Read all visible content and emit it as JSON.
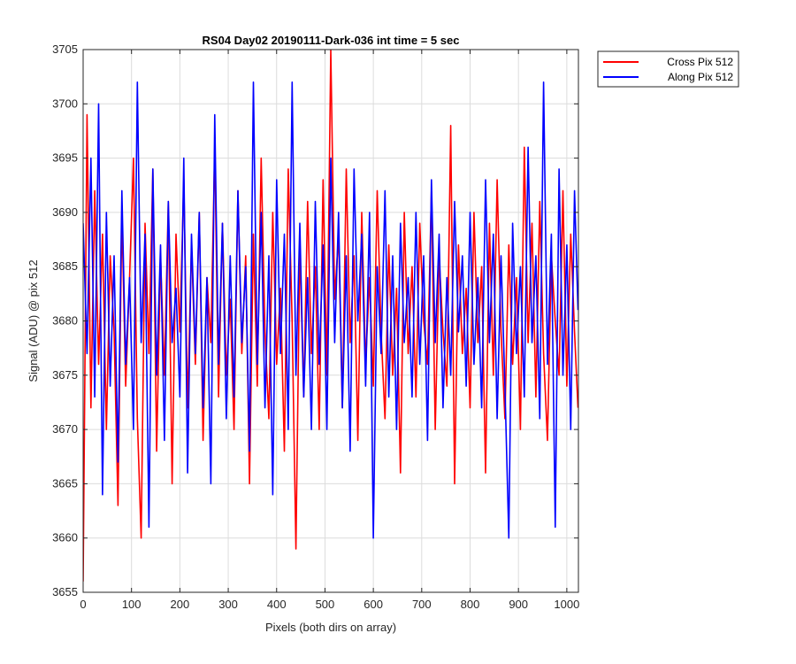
{
  "chart_data": {
    "type": "line",
    "title": "RS04 Day02 20190111-Dark-036 int time = 5 sec",
    "xlabel": "Pixels (both dirs on array)",
    "ylabel": "Signal (ADU) @ pix 512",
    "xlim": [
      0,
      1024
    ],
    "ylim": [
      3655,
      3705
    ],
    "xticks": [
      0,
      100,
      200,
      300,
      400,
      500,
      600,
      700,
      800,
      900,
      1000
    ],
    "yticks": [
      3655,
      3660,
      3665,
      3670,
      3675,
      3680,
      3685,
      3690,
      3695,
      3700,
      3705
    ],
    "grid": true,
    "legend_position": "outside-top-right",
    "series": [
      {
        "name": "Cross Pix 512",
        "color": "#ff0000",
        "x": [
          0,
          8,
          16,
          24,
          32,
          40,
          48,
          56,
          64,
          72,
          80,
          88,
          96,
          104,
          112,
          120,
          128,
          136,
          144,
          152,
          160,
          168,
          176,
          184,
          192,
          200,
          208,
          216,
          224,
          232,
          240,
          248,
          256,
          264,
          272,
          280,
          288,
          296,
          304,
          312,
          320,
          328,
          336,
          344,
          352,
          360,
          368,
          376,
          384,
          392,
          400,
          408,
          416,
          424,
          432,
          440,
          448,
          456,
          464,
          472,
          480,
          488,
          496,
          504,
          512,
          520,
          528,
          536,
          544,
          552,
          560,
          568,
          576,
          584,
          592,
          600,
          608,
          616,
          624,
          632,
          640,
          648,
          656,
          664,
          672,
          680,
          688,
          696,
          704,
          712,
          720,
          728,
          736,
          744,
          752,
          760,
          768,
          776,
          784,
          792,
          800,
          808,
          816,
          824,
          832,
          840,
          848,
          856,
          864,
          872,
          880,
          888,
          896,
          904,
          912,
          920,
          928,
          936,
          944,
          952,
          960,
          968,
          976,
          984,
          992,
          1000,
          1008,
          1016,
          1023
        ],
        "y": [
          3656,
          3699,
          3672,
          3692,
          3676,
          3688,
          3670,
          3686,
          3679,
          3663,
          3690,
          3674,
          3684,
          3695,
          3671,
          3660,
          3689,
          3677,
          3694,
          3668,
          3686,
          3675,
          3691,
          3665,
          3688,
          3679,
          3693,
          3672,
          3687,
          3676,
          3690,
          3669,
          3684,
          3678,
          3696,
          3673,
          3689,
          3675,
          3682,
          3670,
          3692,
          3677,
          3686,
          3665,
          3688,
          3674,
          3695,
          3679,
          3671,
          3690,
          3676,
          3683,
          3668,
          3694,
          3680,
          3659,
          3687,
          3673,
          3691,
          3677,
          3685,
          3670,
          3693,
          3675,
          3705,
          3682,
          3688,
          3672,
          3694,
          3678,
          3686,
          3669,
          3690,
          3676,
          3684,
          3674,
          3692,
          3679,
          3671,
          3687,
          3675,
          3683,
          3666,
          3690,
          3677,
          3685,
          3673,
          3689,
          3680,
          3676,
          3692,
          3670,
          3686,
          3679,
          3674,
          3698,
          3665,
          3687,
          3677,
          3683,
          3672,
          3690,
          3678,
          3685,
          3666,
          3689,
          3675,
          3693,
          3679,
          3671,
          3687,
          3676,
          3684,
          3670,
          3696,
          3678,
          3689,
          3673,
          3691,
          3677,
          3669,
          3686,
          3680,
          3675,
          3692,
          3674,
          3688,
          3679,
          3672
        ]
      },
      {
        "name": "Along Pix 512",
        "color": "#0000ff",
        "x": [
          0,
          8,
          16,
          24,
          32,
          40,
          48,
          56,
          64,
          72,
          80,
          88,
          96,
          104,
          112,
          120,
          128,
          136,
          144,
          152,
          160,
          168,
          176,
          184,
          192,
          200,
          208,
          216,
          224,
          232,
          240,
          248,
          256,
          264,
          272,
          280,
          288,
          296,
          304,
          312,
          320,
          328,
          336,
          344,
          352,
          360,
          368,
          376,
          384,
          392,
          400,
          408,
          416,
          424,
          432,
          440,
          448,
          456,
          464,
          472,
          480,
          488,
          496,
          504,
          512,
          520,
          528,
          536,
          544,
          552,
          560,
          568,
          576,
          584,
          592,
          600,
          608,
          616,
          624,
          632,
          640,
          648,
          656,
          664,
          672,
          680,
          688,
          696,
          704,
          712,
          720,
          728,
          736,
          744,
          752,
          760,
          768,
          776,
          784,
          792,
          800,
          808,
          816,
          824,
          832,
          840,
          848,
          856,
          864,
          872,
          880,
          888,
          896,
          904,
          912,
          920,
          928,
          936,
          944,
          952,
          960,
          968,
          976,
          984,
          992,
          1000,
          1008,
          1016,
          1023
        ],
        "y": [
          3689,
          3677,
          3695,
          3673,
          3700,
          3664,
          3690,
          3674,
          3686,
          3667,
          3692,
          3676,
          3684,
          3670,
          3702,
          3678,
          3688,
          3661,
          3694,
          3675,
          3687,
          3669,
          3691,
          3678,
          3683,
          3673,
          3695,
          3666,
          3688,
          3677,
          3690,
          3672,
          3684,
          3665,
          3699,
          3676,
          3689,
          3671,
          3686,
          3673,
          3692,
          3678,
          3685,
          3668,
          3702,
          3676,
          3690,
          3672,
          3686,
          3664,
          3693,
          3677,
          3688,
          3670,
          3702,
          3675,
          3689,
          3673,
          3684,
          3670,
          3691,
          3676,
          3687,
          3670,
          3695,
          3678,
          3690,
          3672,
          3686,
          3668,
          3694,
          3680,
          3688,
          3674,
          3690,
          3660,
          3685,
          3677,
          3692,
          3673,
          3686,
          3670,
          3689,
          3678,
          3684,
          3673,
          3690,
          3676,
          3686,
          3669,
          3693,
          3678,
          3688,
          3672,
          3684,
          3675,
          3691,
          3679,
          3686,
          3674,
          3690,
          3676,
          3684,
          3672,
          3693,
          3678,
          3688,
          3671,
          3686,
          3674,
          3660,
          3689,
          3677,
          3685,
          3673,
          3696,
          3678,
          3686,
          3671,
          3702,
          3676,
          3688,
          3661,
          3694,
          3675,
          3687,
          3670,
          3692,
          3681
        ]
      }
    ]
  }
}
